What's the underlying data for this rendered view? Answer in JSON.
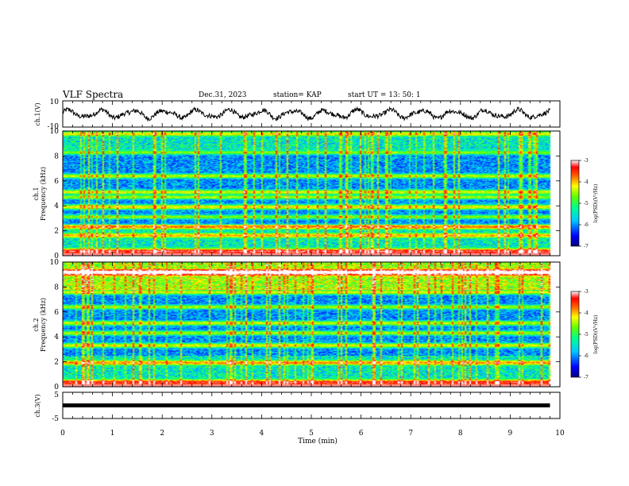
{
  "header": {
    "title": "VLF Spectra",
    "date": "Dec.31, 2023",
    "station": "station= KAP",
    "start": "start  UT  =   13: 50: 1"
  },
  "chart_data": [
    {
      "type": "line",
      "panel": "ch1-voltage",
      "ylabel": "ch.1(V)",
      "ylim": [
        -10,
        10
      ],
      "y_ticks": [
        "10",
        "-10"
      ],
      "x_range_min": [
        0,
        9.8
      ],
      "approx_range_V": [
        -5,
        5
      ]
    },
    {
      "type": "heatmap",
      "panel": "ch1-spectrogram",
      "ylabel": "ch.1\nFrequency (kHz)",
      "ylabel_lines": [
        "ch.1",
        "Frequency (kHz)"
      ],
      "ylim": [
        0,
        10
      ],
      "y_ticks": [
        "0",
        "2",
        "4",
        "6",
        "8",
        "10"
      ],
      "colorbar_label": "log(PSD)(V²/Hz)",
      "colorbar_ticks": [
        "-3",
        "-4",
        "-5",
        "-6",
        "-7"
      ],
      "clim": [
        -7,
        -3
      ],
      "bands_kHz": [
        {
          "f": 0.3,
          "level": -3.8
        },
        {
          "f": 1.6,
          "level": -4.6
        },
        {
          "f": 2.3,
          "level": -4.4
        },
        {
          "f": 3.1,
          "level": -4.7
        },
        {
          "f": 3.9,
          "level": -4.3
        },
        {
          "f": 4.7,
          "level": -4.6
        },
        {
          "f": 5.1,
          "level": -4.4
        },
        {
          "f": 6.4,
          "level": -4.5
        },
        {
          "f": 8.3,
          "level": -4.7
        },
        {
          "f": 9.8,
          "level": -4.8
        }
      ]
    },
    {
      "type": "heatmap",
      "panel": "ch2-spectrogram",
      "ylabel": "ch.2\nFrequency (kHz)",
      "ylabel_lines": [
        "ch.2",
        "Frequency (kHz)"
      ],
      "ylim": [
        0,
        10
      ],
      "y_ticks": [
        "0",
        "2",
        "4",
        "6",
        "8",
        "10"
      ],
      "colorbar_label": "log(PSD)(V²/Hz)",
      "colorbar_ticks": [
        "-3",
        "-4",
        "-5",
        "-6",
        "-7"
      ],
      "clim": [
        -7,
        -3
      ],
      "bands_kHz": [
        {
          "f": 0.3,
          "level": -3.9
        },
        {
          "f": 1.9,
          "level": -4.5
        },
        {
          "f": 3.3,
          "level": -4.4
        },
        {
          "f": 4.3,
          "level": -4.6
        },
        {
          "f": 5.1,
          "level": -4.5
        },
        {
          "f": 6.4,
          "level": -4.6
        },
        {
          "f": 7.6,
          "level": -4.4
        },
        {
          "f": 9.2,
          "level": -3.9
        }
      ]
    },
    {
      "type": "line",
      "panel": "ch3-voltage",
      "ylabel": "ch.3(V)",
      "ylim": [
        -5,
        5
      ],
      "y_ticks": [
        "5",
        "-5"
      ],
      "level_V": 0,
      "x_range_min": [
        0,
        9.8
      ]
    }
  ],
  "xaxis": {
    "label": "Time (min)",
    "ticks": [
      "0",
      "1",
      "2",
      "3",
      "4",
      "5",
      "6",
      "7",
      "8",
      "9",
      "10"
    ],
    "xlim": [
      0,
      10
    ]
  },
  "colors": {
    "trace": "#000000",
    "colormap": [
      "#00007a",
      "#0000ff",
      "#0060ff",
      "#00c8ff",
      "#00ff90",
      "#60ff00",
      "#ffff00",
      "#ff6000",
      "#ff0000",
      "#ffffff"
    ]
  }
}
